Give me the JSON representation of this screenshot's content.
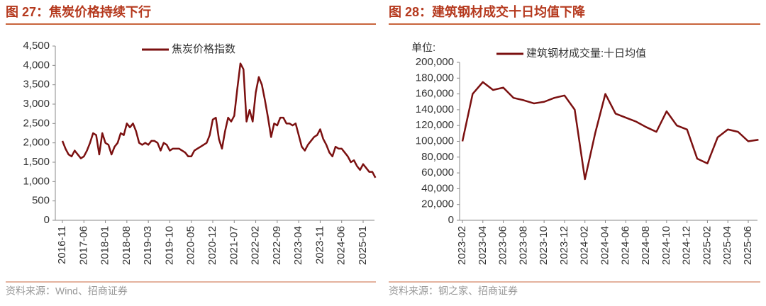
{
  "chart_data": [
    {
      "type": "line",
      "title": "图 27：焦炭价格持续下行",
      "source": "资料来源：Wind、招商证券",
      "categories": [
        "2016-11",
        null,
        null,
        null,
        null,
        null,
        null,
        "2017-06",
        null,
        null,
        null,
        null,
        null,
        null,
        "2018-01",
        null,
        null,
        null,
        null,
        null,
        null,
        "2018-08",
        null,
        null,
        null,
        null,
        null,
        null,
        "2019-03",
        null,
        null,
        null,
        null,
        null,
        null,
        "2019-10",
        null,
        null,
        null,
        null,
        null,
        null,
        "2020-05",
        null,
        null,
        null,
        null,
        null,
        null,
        "2020-12",
        null,
        null,
        null,
        null,
        null,
        null,
        "2021-07",
        null,
        null,
        null,
        null,
        null,
        null,
        "2022-02",
        null,
        null,
        null,
        null,
        null,
        null,
        "2022-09",
        null,
        null,
        null,
        null,
        null,
        null,
        "2023-04",
        null,
        null,
        null,
        null,
        null,
        null,
        "2023-11",
        null,
        null,
        null,
        null,
        null,
        null,
        "2024-06",
        null,
        null,
        null,
        null,
        null,
        null,
        "2025-01",
        null,
        null,
        null,
        null
      ],
      "series": [
        {
          "name": "焦炭价格指数",
          "color": "#7b1010",
          "values": [
            2050,
            1850,
            1700,
            1650,
            1800,
            1700,
            1600,
            1650,
            1800,
            2000,
            2250,
            2200,
            1700,
            2250,
            2000,
            1950,
            1700,
            1900,
            2000,
            2250,
            2200,
            2500,
            2400,
            2500,
            2300,
            2000,
            1950,
            2000,
            1950,
            2050,
            2050,
            2000,
            1800,
            2000,
            1950,
            1800,
            1850,
            1850,
            1850,
            1800,
            1750,
            1650,
            1650,
            1800,
            1850,
            1900,
            1950,
            2000,
            2200,
            2600,
            2650,
            2100,
            1850,
            2300,
            2650,
            2550,
            2700,
            3400,
            4050,
            3900,
            2550,
            2850,
            2550,
            3300,
            3700,
            3500,
            3100,
            2650,
            2150,
            2500,
            2450,
            2650,
            2650,
            2500,
            2500,
            2450,
            2500,
            2200,
            1900,
            1800,
            1950,
            2050,
            2150,
            2200,
            2350,
            2100,
            1950,
            1750,
            1650,
            1900,
            1850,
            1850,
            1750,
            1650,
            1500,
            1550,
            1400,
            1300,
            1450,
            1350,
            1250,
            1250,
            1100
          ]
        }
      ],
      "ylim": [
        0,
        4500
      ],
      "yticks": [
        0,
        500,
        {
          "value": 1000,
          "label": "1,000"
        },
        {
          "value": 1500,
          "label": "1,500"
        },
        {
          "value": 2000,
          "label": "2,000"
        },
        {
          "value": 2500,
          "label": "2,500"
        },
        {
          "value": 3000,
          "label": "3,000"
        },
        {
          "value": 3500,
          "label": "3,500"
        },
        {
          "value": 4000,
          "label": "4,000"
        },
        {
          "value": 4500,
          "label": "4,500"
        }
      ],
      "legend": "top"
    },
    {
      "type": "line",
      "title": "图 28：建筑钢材成交十日均值下降",
      "source": "资料来源：钢之家、招商证券",
      "y_unit": "单位:",
      "categories": [
        "2023-02",
        null,
        "2023-04",
        null,
        "2023-06",
        null,
        "2023-08",
        null,
        "2023-10",
        null,
        "2023-12",
        null,
        "2024-02",
        null,
        "2024-04",
        null,
        "2024-06",
        null,
        "2024-08",
        null,
        "2024-10",
        null,
        "2024-12",
        null,
        "2025-02",
        null,
        "2025-04",
        null,
        "2025-06",
        null
      ],
      "series": [
        {
          "name": "建筑钢材成交量:十日均值",
          "color": "#7b1010",
          "values": [
            100000,
            160000,
            175000,
            165000,
            168000,
            155000,
            152000,
            148000,
            150000,
            155000,
            158000,
            140000,
            52000,
            110000,
            160000,
            135000,
            130000,
            125000,
            118000,
            112000,
            138000,
            120000,
            115000,
            78000,
            72000,
            105000,
            115000,
            112000,
            100000,
            102000
          ]
        }
      ],
      "ylim": [
        0,
        200000
      ],
      "yticks": [
        0,
        {
          "value": 20000,
          "label": "20,000"
        },
        {
          "value": 40000,
          "label": "40,000"
        },
        {
          "value": 60000,
          "label": "60,000"
        },
        {
          "value": 80000,
          "label": "80,000"
        },
        {
          "value": 100000,
          "label": "100,000"
        },
        {
          "value": 120000,
          "label": "120,000"
        },
        {
          "value": 140000,
          "label": "140,000"
        },
        {
          "value": 160000,
          "label": "160,000"
        },
        {
          "value": 180000,
          "label": "180,000"
        },
        {
          "value": 200000,
          "label": "200,000"
        }
      ],
      "legend": "top"
    }
  ]
}
